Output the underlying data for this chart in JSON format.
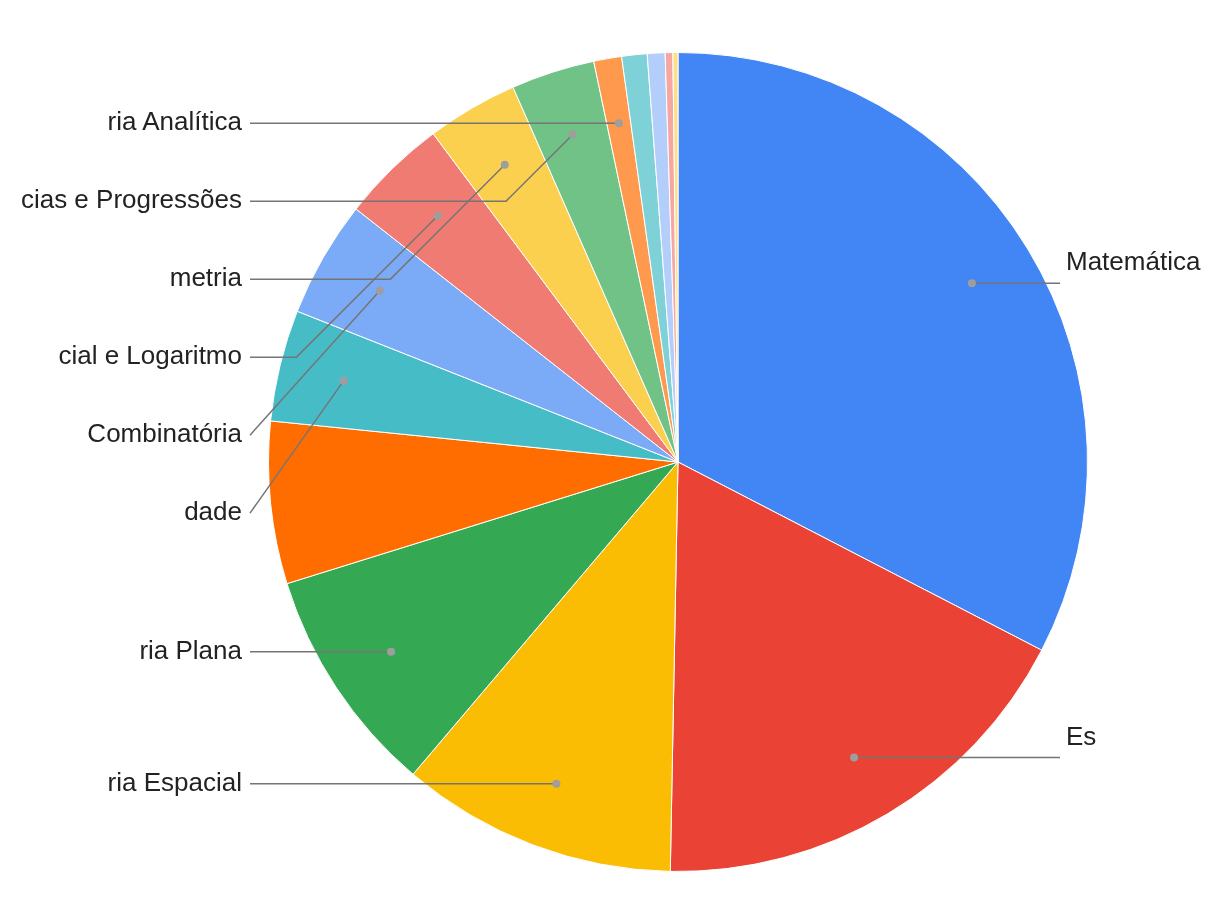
{
  "chart_data": {
    "type": "pie",
    "categories": [
      "Matemática",
      "Es",
      "ria Espacial",
      "ria Plana",
      null,
      "dade",
      "Combinatória",
      "cial e Logaritmo",
      "metria",
      "cias e Progressões",
      "ria Analítica",
      null,
      null,
      null,
      null
    ],
    "values": [
      32.6,
      17.7,
      10.9,
      9.0,
      6.4,
      4.4,
      4.6,
      4.2,
      3.6,
      3.3,
      1.1,
      1.0,
      0.7,
      0.3,
      0.2
    ],
    "colors": [
      "#4285f4",
      "#ea4335",
      "#fbbc04",
      "#34a853",
      "#ff6d01",
      "#46bdc6",
      "#7baaf7",
      "#f07b72",
      "#fcd04f",
      "#71c287",
      "#ff994d",
      "#7ed1d7",
      "#b3cefb",
      "#f7a7a1",
      "#fdde8a"
    ],
    "legend": false
  }
}
